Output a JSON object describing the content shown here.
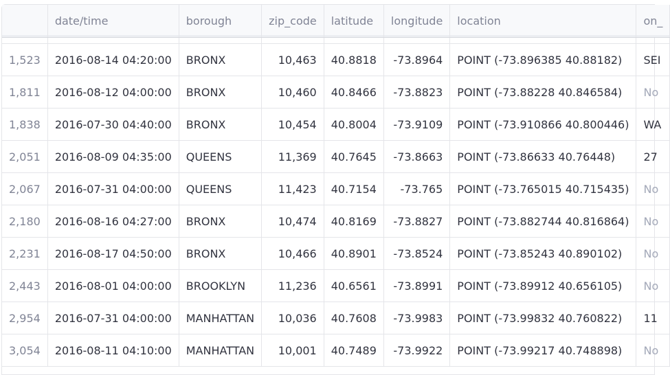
{
  "table": {
    "columns": [
      "",
      "date/time",
      "borough",
      "zip_code",
      "latitude",
      "longitude",
      "location",
      "on_"
    ],
    "rows": [
      {
        "idx": "1,523",
        "datetime": "2016-08-14 04:20:00",
        "borough": "BRONX",
        "zip": "10,463",
        "lat": "40.8818",
        "lon": "-73.8964",
        "loc": "POINT (-73.896385 40.88182)",
        "on": "SEI",
        "on_muted": false
      },
      {
        "idx": "1,811",
        "datetime": "2016-08-12 04:00:00",
        "borough": "BRONX",
        "zip": "10,460",
        "lat": "40.8466",
        "lon": "-73.8823",
        "loc": "POINT (-73.88228 40.846584)",
        "on": "No",
        "on_muted": true
      },
      {
        "idx": "1,838",
        "datetime": "2016-07-30 04:40:00",
        "borough": "BRONX",
        "zip": "10,454",
        "lat": "40.8004",
        "lon": "-73.9109",
        "loc": "POINT (-73.910866 40.800446)",
        "on": "WA",
        "on_muted": false
      },
      {
        "idx": "2,051",
        "datetime": "2016-08-09 04:35:00",
        "borough": "QUEENS",
        "zip": "11,369",
        "lat": "40.7645",
        "lon": "-73.8663",
        "loc": "POINT (-73.86633 40.76448)",
        "on": "27",
        "on_muted": false
      },
      {
        "idx": "2,067",
        "datetime": "2016-07-31 04:00:00",
        "borough": "QUEENS",
        "zip": "11,423",
        "lat": "40.7154",
        "lon": "-73.765",
        "loc": "POINT (-73.765015 40.715435)",
        "on": "No",
        "on_muted": true
      },
      {
        "idx": "2,180",
        "datetime": "2016-08-16 04:27:00",
        "borough": "BRONX",
        "zip": "10,474",
        "lat": "40.8169",
        "lon": "-73.8827",
        "loc": "POINT (-73.882744 40.816864)",
        "on": "No",
        "on_muted": true
      },
      {
        "idx": "2,231",
        "datetime": "2016-08-17 04:50:00",
        "borough": "BRONX",
        "zip": "10,466",
        "lat": "40.8901",
        "lon": "-73.8524",
        "loc": "POINT (-73.85243 40.890102)",
        "on": "No",
        "on_muted": true
      },
      {
        "idx": "2,443",
        "datetime": "2016-08-01 04:00:00",
        "borough": "BROOKLYN",
        "zip": "11,236",
        "lat": "40.6561",
        "lon": "-73.8991",
        "loc": "POINT (-73.89912 40.656105)",
        "on": "No",
        "on_muted": true
      },
      {
        "idx": "2,954",
        "datetime": "2016-07-31 04:00:00",
        "borough": "MANHATTAN",
        "zip": "10,036",
        "lat": "40.7608",
        "lon": "-73.9983",
        "loc": "POINT (-73.99832 40.760822)",
        "on": "11",
        "on_muted": false
      },
      {
        "idx": "3,054",
        "datetime": "2016-08-11 04:10:00",
        "borough": "MANHATTAN",
        "zip": "10,001",
        "lat": "40.7489",
        "lon": "-73.9922",
        "loc": "POINT (-73.99217 40.748898)",
        "on": "No",
        "on_muted": true
      }
    ]
  }
}
